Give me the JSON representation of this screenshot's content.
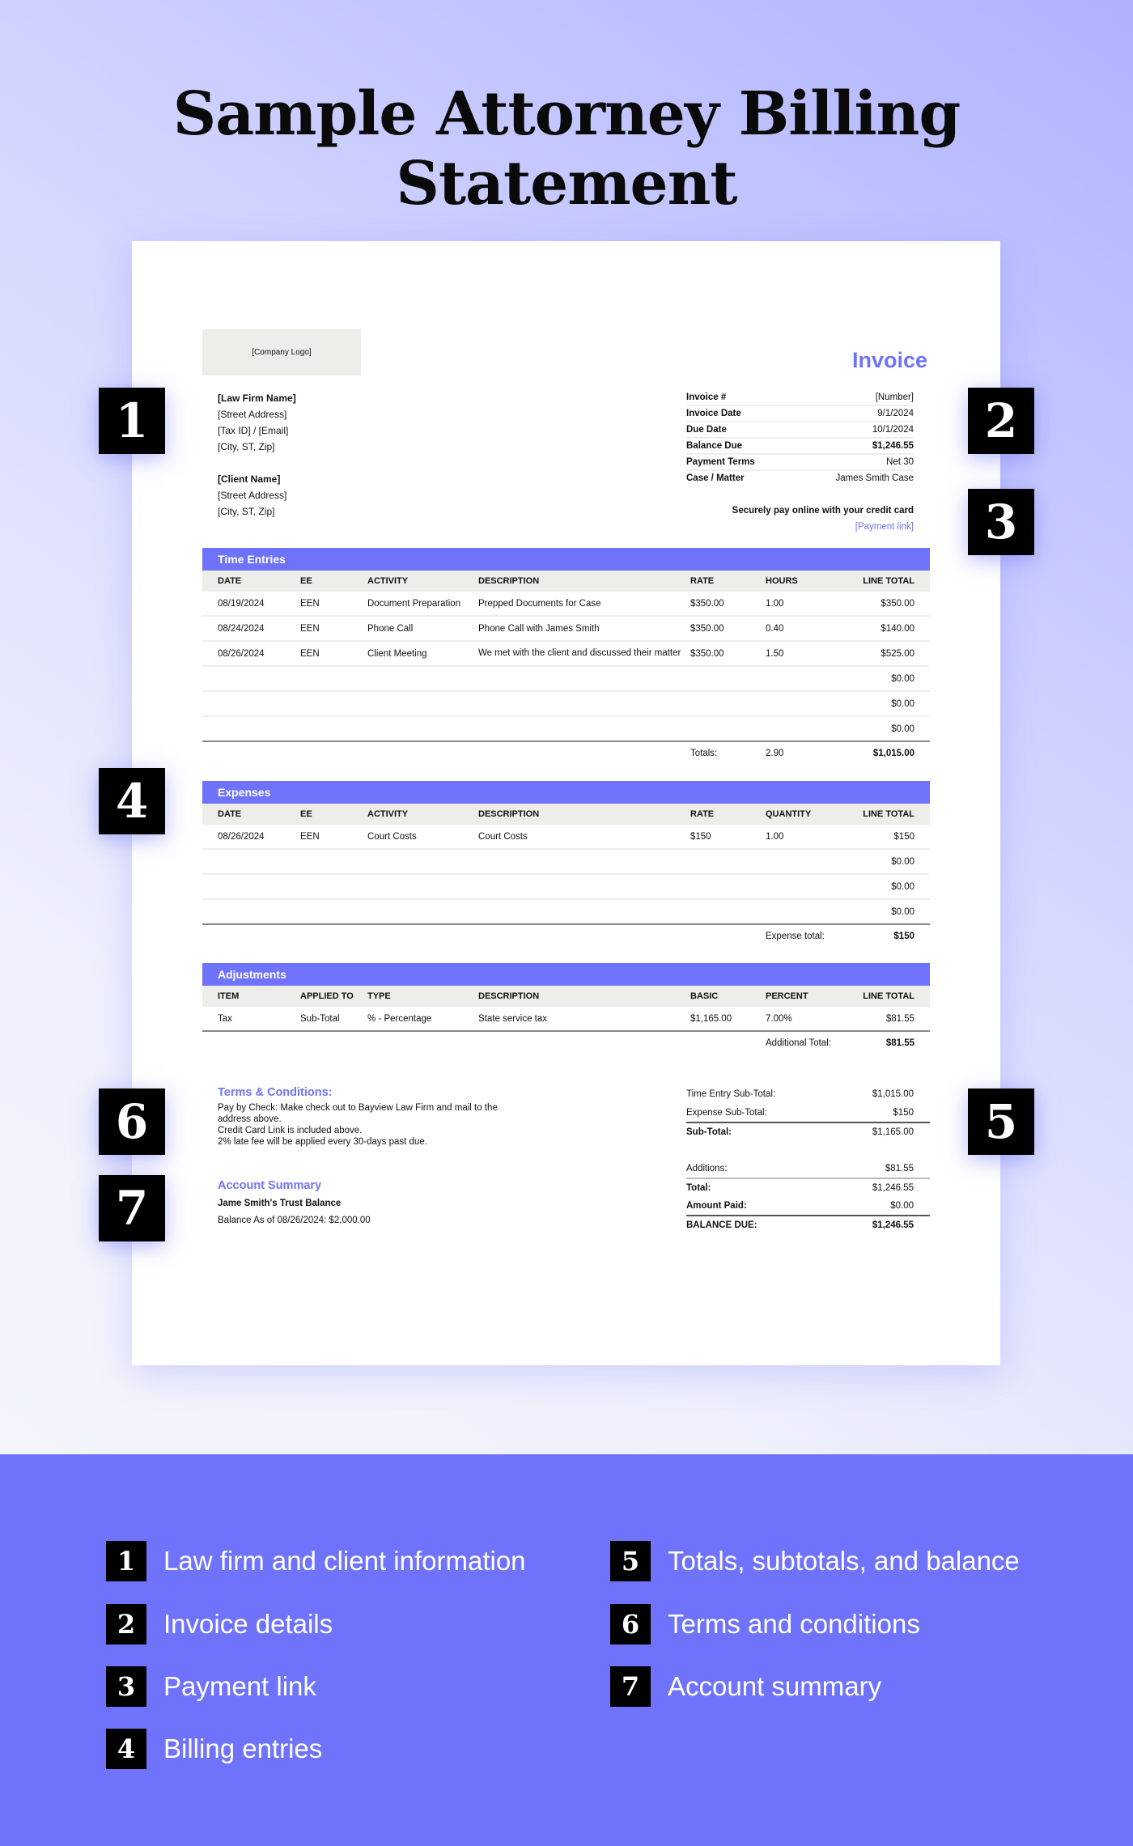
{
  "title": "Sample Attorney Billing Statement",
  "invoice": {
    "logo": "[Company Logo]",
    "heading": "Invoice",
    "firm": [
      "[Law Firm Name]",
      "[Street Address]",
      "[Tax ID] / [Email]",
      "[City, ST, Zip]"
    ],
    "client": [
      "[Client Name]",
      "[Street Address]",
      "[City, ST, Zip]"
    ],
    "meta": [
      {
        "k": "Invoice #",
        "v": "[Number]"
      },
      {
        "k": "Invoice Date",
        "v": "9/1/2024"
      },
      {
        "k": "Due Date",
        "v": "10/1/2024"
      },
      {
        "k": "Balance Due",
        "v": "$1,246.55"
      },
      {
        "k": "Payment Terms",
        "v": "Net 30"
      },
      {
        "k": "Case / Matter",
        "v": "James Smith Case"
      }
    ],
    "pay_text": "Securely pay online with your credit card",
    "pay_link": "[Payment link]",
    "time": {
      "title": "Time Entries",
      "headers": [
        "DATE",
        "EE",
        "ACTIVITY",
        "DESCRIPTION",
        "RATE",
        "HOURS",
        "LINE TOTAL"
      ],
      "rows": [
        [
          "08/19/2024",
          "EEN",
          "Document Preparation",
          "Prepped Documents for Case",
          "$350.00",
          "1.00",
          "$350.00"
        ],
        [
          "08/24/2024",
          "EEN",
          "Phone Call",
          "Phone Call with James Smith",
          "$350.00",
          "0.40",
          "$140.00"
        ],
        [
          "08/26/2024",
          "EEN",
          "Client Meeting",
          "We met with the client and discussed their matter",
          "$350.00",
          "1.50",
          "$525.00"
        ],
        [
          "",
          "",
          "",
          "",
          "",
          "",
          "$0.00"
        ],
        [
          "",
          "",
          "",
          "",
          "",
          "",
          "$0.00"
        ],
        [
          "",
          "",
          "",
          "",
          "",
          "",
          "$0.00"
        ]
      ],
      "totals_label": "Totals:",
      "totals_hours": "2.90",
      "totals_amount": "$1,015.00"
    },
    "expenses": {
      "title": "Expenses",
      "headers": [
        "DATE",
        "EE",
        "ACTIVITY",
        "DESCRIPTION",
        "RATE",
        "QUANTITY",
        "LINE TOTAL"
      ],
      "rows": [
        [
          "08/26/2024",
          "EEN",
          "Court Costs",
          "Court Costs",
          "$150",
          "1.00",
          "$150"
        ],
        [
          "",
          "",
          "",
          "",
          "",
          "",
          "$0.00"
        ],
        [
          "",
          "",
          "",
          "",
          "",
          "",
          "$0.00"
        ],
        [
          "",
          "",
          "",
          "",
          "",
          "",
          "$0.00"
        ]
      ],
      "total_label": "Expense total:",
      "total": "$150"
    },
    "adjustments": {
      "title": "Adjustments",
      "headers": [
        "ITEM",
        "APPLIED TO",
        "TYPE",
        "DESCRIPTION",
        "BASIC",
        "PERCENT",
        "LINE TOTAL"
      ],
      "rows": [
        [
          "Tax",
          "Sub-Total",
          "% - Percentage",
          "State service tax",
          "$1,165.00",
          "7.00%",
          "$81.55"
        ]
      ],
      "total_label": "Additional Total:",
      "total": "$81.55"
    },
    "terms": {
      "title": "Terms & Conditions:",
      "lines": [
        "Pay by Check: Make check out to Bayview Law Firm and mail to the address above.",
        "Credit Card Link is included above.",
        "2% late fee will be applied every 30-days past due."
      ]
    },
    "account": {
      "title": "Account Summary",
      "name": "Jame Smith's Trust Balance",
      "balance": "Balance As of 08/26/2024: $2,000.00"
    },
    "summary": [
      {
        "k": "Time Entry Sub-Total:",
        "v": "$1,015.00"
      },
      {
        "k": "Expense Sub-Total:",
        "v": "$150"
      },
      {
        "k": "Sub-Total:",
        "v": "$1,165.00"
      },
      {
        "k": "Additions:",
        "v": "$81.55"
      },
      {
        "k": "Total:",
        "v": "$1,246.55"
      },
      {
        "k": "Amount Paid:",
        "v": "$0.00"
      },
      {
        "k": "BALANCE DUE:",
        "v": "$1,246.55"
      }
    ]
  },
  "badges": [
    "1",
    "2",
    "3",
    "4",
    "5",
    "6",
    "7"
  ],
  "legend": [
    {
      "n": "1",
      "t": "Law firm and client information"
    },
    {
      "n": "2",
      "t": "Invoice details"
    },
    {
      "n": "3",
      "t": "Payment link"
    },
    {
      "n": "4",
      "t": "Billing entries"
    },
    {
      "n": "5",
      "t": "Totals, subtotals, and balance"
    },
    {
      "n": "6",
      "t": "Terms and conditions"
    },
    {
      "n": "7",
      "t": "Account summary"
    }
  ],
  "colors": {
    "accent": "#6f73fc",
    "header_gray": "#ededea"
  }
}
